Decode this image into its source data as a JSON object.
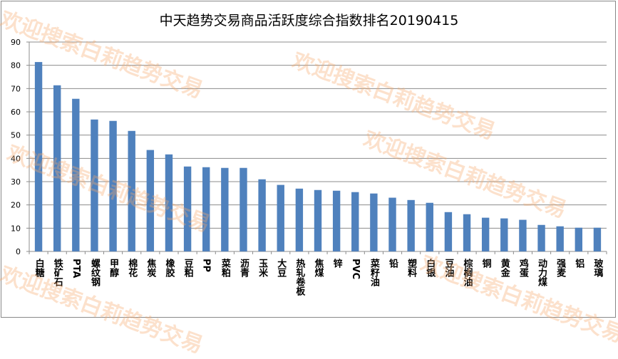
{
  "chart_data": {
    "type": "bar",
    "title": "中天趋势交易商品活跃度综合指数排名20190415",
    "xlabel": "",
    "ylabel": "",
    "ylim": [
      0,
      90
    ],
    "yticks": [
      0,
      10,
      20,
      30,
      40,
      50,
      60,
      70,
      80,
      90
    ],
    "grid": true,
    "legend": "none",
    "bar_color": "#4f81bd",
    "categories": [
      "白糖",
      "铁矿石",
      "PTA",
      "螺纹钢",
      "甲醇",
      "棉花",
      "焦炭",
      "橡胶",
      "豆粕",
      "PP",
      "菜粕",
      "沥青",
      "玉米",
      "大豆",
      "热轧卷板",
      "焦煤",
      "锌",
      "PVC",
      "菜籽油",
      "铅",
      "塑料",
      "白银",
      "豆油",
      "棕榈油",
      "铜",
      "黄金",
      "鸡蛋",
      "动力煤",
      "强麦",
      "铝",
      "玻璃"
    ],
    "values": [
      81.4,
      71.4,
      65.6,
      56.7,
      56.1,
      51.8,
      43.6,
      41.7,
      36.5,
      36.2,
      35.9,
      35.9,
      31.0,
      28.6,
      27.0,
      26.4,
      26.1,
      25.5,
      24.9,
      23.1,
      22.1,
      20.9,
      16.9,
      16.0,
      14.5,
      14.2,
      13.6,
      11.4,
      10.8,
      10.2,
      10.2
    ]
  },
  "watermark": "欢迎搜索白莉趋势交易"
}
